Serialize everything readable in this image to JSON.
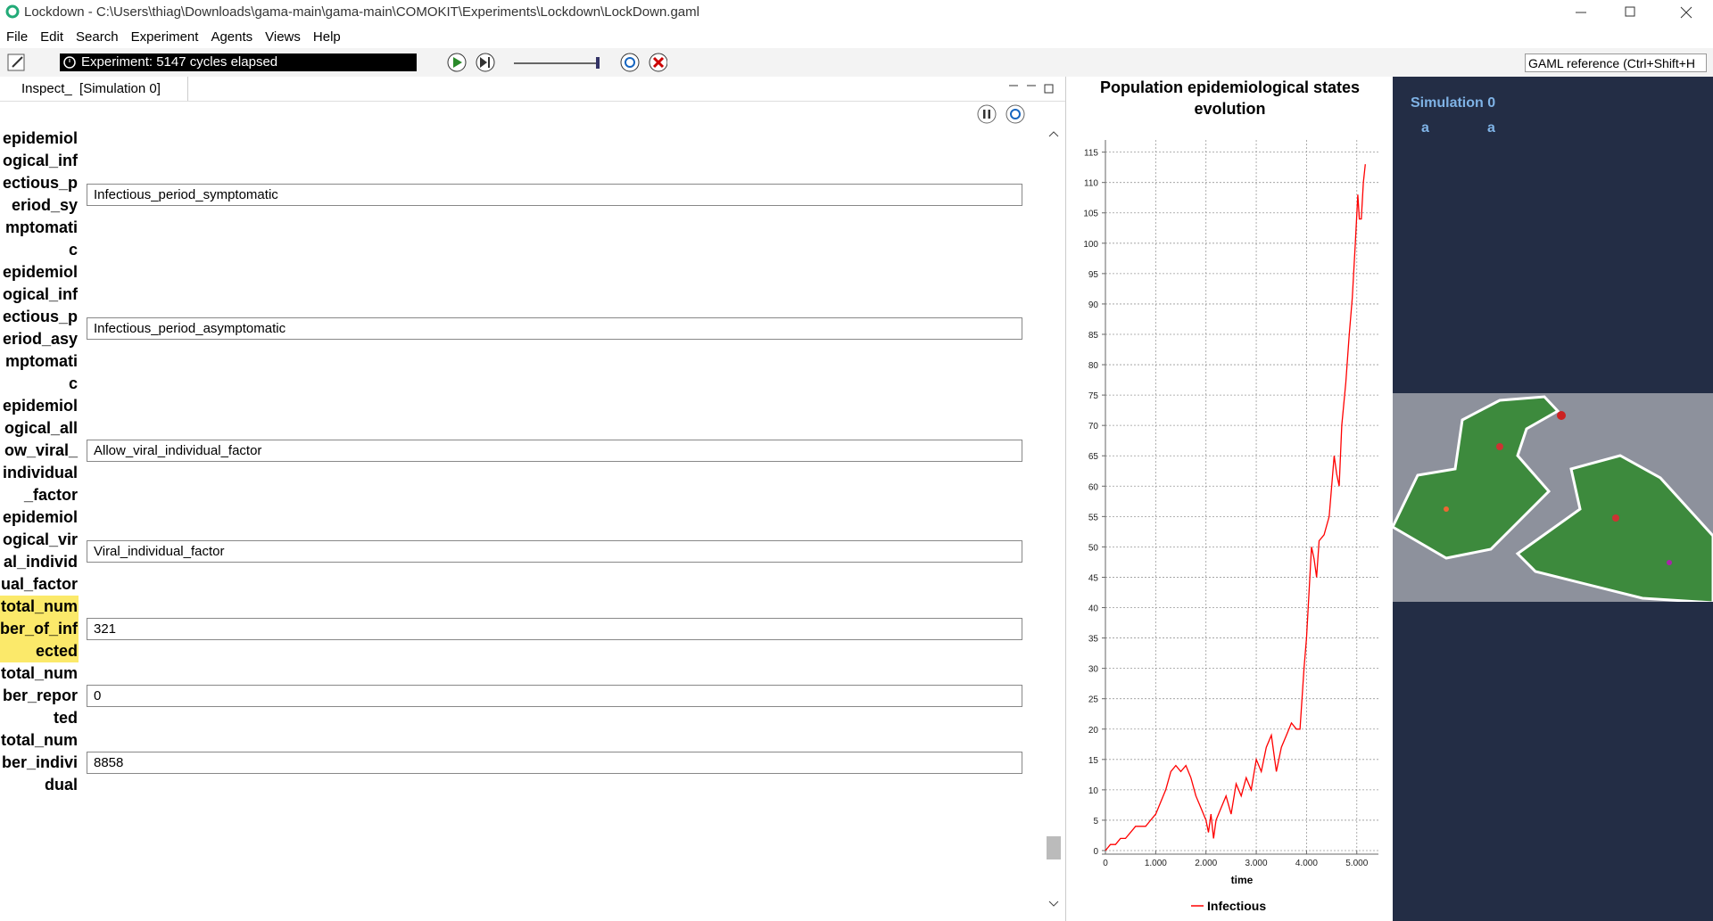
{
  "window": {
    "title": "Lockdown - C:\\Users\\thiag\\Downloads\\gama-main\\gama-main\\COMOKIT\\Experiments\\Lockdown\\LockDown.gaml"
  },
  "menu": [
    "File",
    "Edit",
    "Search",
    "Experiment",
    "Agents",
    "Views",
    "Help"
  ],
  "toolbar": {
    "status": "Experiment: 5147 cycles elapsed",
    "search": "GAML reference (Ctrl+Shift+H"
  },
  "inspector": {
    "tab": "Inspect_  [Simulation 0]",
    "rows": [
      {
        "label": "epidemiological_infectious_period_symptomatic",
        "value": "Infectious_period_symptomatic"
      },
      {
        "label": "epidemiological_infectious_period_asymptomatic",
        "value": "Infectious_period_asymptomatic"
      },
      {
        "label": "epidemiological_allow_viral_individual_factor",
        "value": "Allow_viral_individual_factor"
      },
      {
        "label": "epidemiological_viral_individual_factor",
        "value": "Viral_individual_factor"
      },
      {
        "label": "total_number_of_infected",
        "value": "321",
        "highlighted": true
      },
      {
        "label": "total_number_reported",
        "value": "0"
      },
      {
        "label": "total_number_individual",
        "value": "8858"
      }
    ]
  },
  "chart_data": {
    "type": "line",
    "title": "Population epidemiological states evolution",
    "x_label": "time",
    "x": [
      0,
      100,
      200,
      300,
      400,
      500,
      600,
      700,
      800,
      900,
      1000,
      1100,
      1200,
      1300,
      1400,
      1500,
      1600,
      1700,
      1800,
      1900,
      2000,
      2050,
      2100,
      2150,
      2200,
      2300,
      2400,
      2500,
      2600,
      2700,
      2800,
      2900,
      3000,
      3100,
      3200,
      3300,
      3400,
      3500,
      3600,
      3700,
      3800,
      3870,
      3950,
      4000,
      4100,
      4150,
      4200,
      4250,
      4350,
      4450,
      4550,
      4600,
      4650,
      4700,
      4780,
      4850,
      4910,
      4970,
      5020,
      5050,
      5090,
      5130,
      5170
    ],
    "series": [
      {
        "name": "Infectious",
        "color": "#ff0000",
        "values": [
          0,
          1,
          1,
          2,
          2,
          3,
          4,
          4,
          4,
          5,
          6,
          8,
          10,
          13,
          14,
          13,
          14,
          12,
          9,
          7,
          5,
          3,
          6,
          2,
          5,
          7,
          9,
          6,
          11,
          9,
          12,
          10,
          15,
          13,
          17,
          19,
          13,
          17,
          19,
          21,
          20,
          20,
          30,
          35,
          50,
          48,
          45,
          51,
          52,
          55,
          65,
          62,
          60,
          70,
          77,
          85,
          91,
          100,
          108,
          104,
          104,
          110,
          113
        ]
      }
    ],
    "xlim": [
      0,
      5430
    ],
    "ylim": [
      0,
      117
    ],
    "xticks": [
      0,
      {
        "value": 1000,
        "label": "1.000"
      },
      {
        "value": 2000,
        "label": "2.000"
      },
      {
        "value": 3000,
        "label": "3.000"
      },
      {
        "value": 4000,
        "label": "4.000"
      },
      {
        "value": 5000,
        "label": "5.000"
      }
    ],
    "yticks": [
      0,
      5,
      10,
      15,
      20,
      25,
      30,
      35,
      40,
      45,
      50,
      55,
      60,
      65,
      70,
      75,
      80,
      85,
      90,
      95,
      100,
      105,
      110,
      115
    ],
    "grid": true,
    "legend": "bottom"
  },
  "simulation": {
    "title": "Simulation 0",
    "labels": [
      "a",
      "a"
    ]
  }
}
